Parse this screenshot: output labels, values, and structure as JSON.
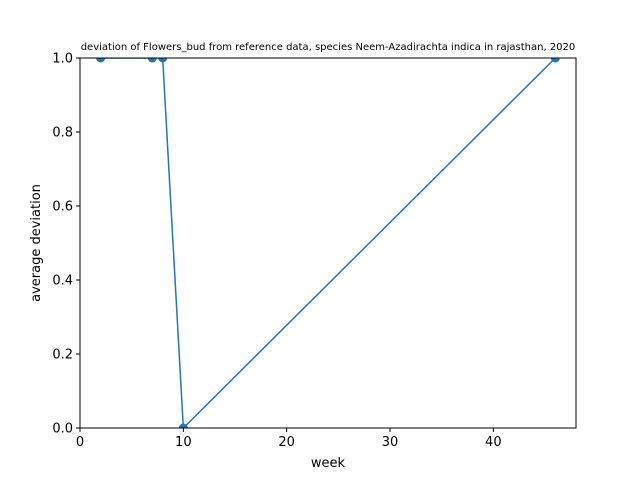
{
  "chart_data": {
    "type": "line",
    "title": "deviation of Flowers_bud from reference data, species Neem-Azadirachta indica in rajasthan, 2020",
    "xlabel": "week",
    "ylabel": "average deviation",
    "xlim": [
      0,
      48
    ],
    "ylim": [
      0.0,
      1.0
    ],
    "xticks": [
      0,
      10,
      20,
      30,
      40
    ],
    "yticks": [
      0.0,
      0.2,
      0.4,
      0.6,
      0.8,
      1.0
    ],
    "grid": false,
    "series": [
      {
        "x": [
          2,
          7,
          8,
          10,
          46
        ],
        "y": [
          1.0,
          1.0,
          1.0,
          0.0,
          1.0
        ],
        "color": "#1f77b4",
        "marker": "circle"
      }
    ]
  }
}
